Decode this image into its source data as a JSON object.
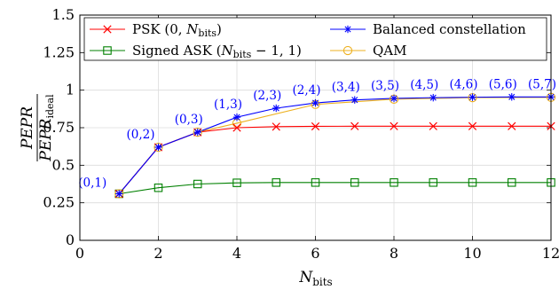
{
  "chart_data": {
    "type": "line",
    "xlabel": "N_bits",
    "ylabel": "PEPR / PEPR_ideal",
    "xlim": [
      0,
      12
    ],
    "ylim": [
      0,
      1.5
    ],
    "xticks": [
      0,
      2,
      4,
      6,
      8,
      10,
      12
    ],
    "xtick_labels": [
      "0",
      "2",
      "4",
      "6",
      "8",
      "10",
      "12"
    ],
    "yticks": [
      0,
      0.25,
      0.5,
      0.75,
      1,
      1.25,
      1.5
    ],
    "ytick_labels": [
      "0",
      "0.25",
      "0.5",
      "0.75",
      "1",
      "1.25",
      "1.5"
    ],
    "grid": true,
    "legend_position": "top",
    "series": [
      {
        "name": "PSK (0, N_bits)",
        "color": "#ff0000",
        "marker": "x",
        "x": [
          1,
          2,
          3,
          4,
          5,
          6,
          7,
          8,
          9,
          10,
          11,
          12
        ],
        "y": [
          0.31,
          0.62,
          0.72,
          0.75,
          0.757,
          0.759,
          0.76,
          0.76,
          0.76,
          0.76,
          0.76,
          0.76
        ]
      },
      {
        "name": "Signed ASK (N_bits − 1, 1)",
        "color": "#008000",
        "marker": "square",
        "x": [
          1,
          2,
          3,
          4,
          5,
          6,
          7,
          8,
          9,
          10,
          11,
          12
        ],
        "y": [
          0.31,
          0.35,
          0.375,
          0.383,
          0.385,
          0.385,
          0.385,
          0.385,
          0.385,
          0.385,
          0.385,
          0.385
        ]
      },
      {
        "name": "Balanced constellation",
        "color": "#0000ff",
        "marker": "star",
        "x": [
          1,
          2,
          3,
          4,
          5,
          6,
          7,
          8,
          9,
          10,
          11,
          12
        ],
        "y": [
          0.31,
          0.62,
          0.72,
          0.82,
          0.88,
          0.915,
          0.935,
          0.945,
          0.95,
          0.953,
          0.955,
          0.955
        ]
      },
      {
        "name": "QAM",
        "color": "#edb120",
        "marker": "circle",
        "x": [
          1,
          2,
          3,
          4,
          6,
          8,
          10,
          12
        ],
        "y": [
          0.31,
          0.62,
          0.72,
          0.78,
          0.905,
          0.94,
          0.95,
          0.952
        ]
      }
    ],
    "point_labels": {
      "series": "Balanced constellation",
      "labels": [
        "(0,1)",
        "(0,2)",
        "(0,3)",
        "(1,3)",
        "(2,3)",
        "(2,4)",
        "(3,4)",
        "(3,5)",
        "(4,5)",
        "(4,6)",
        "(5,6)",
        "(5,7)"
      ]
    }
  }
}
